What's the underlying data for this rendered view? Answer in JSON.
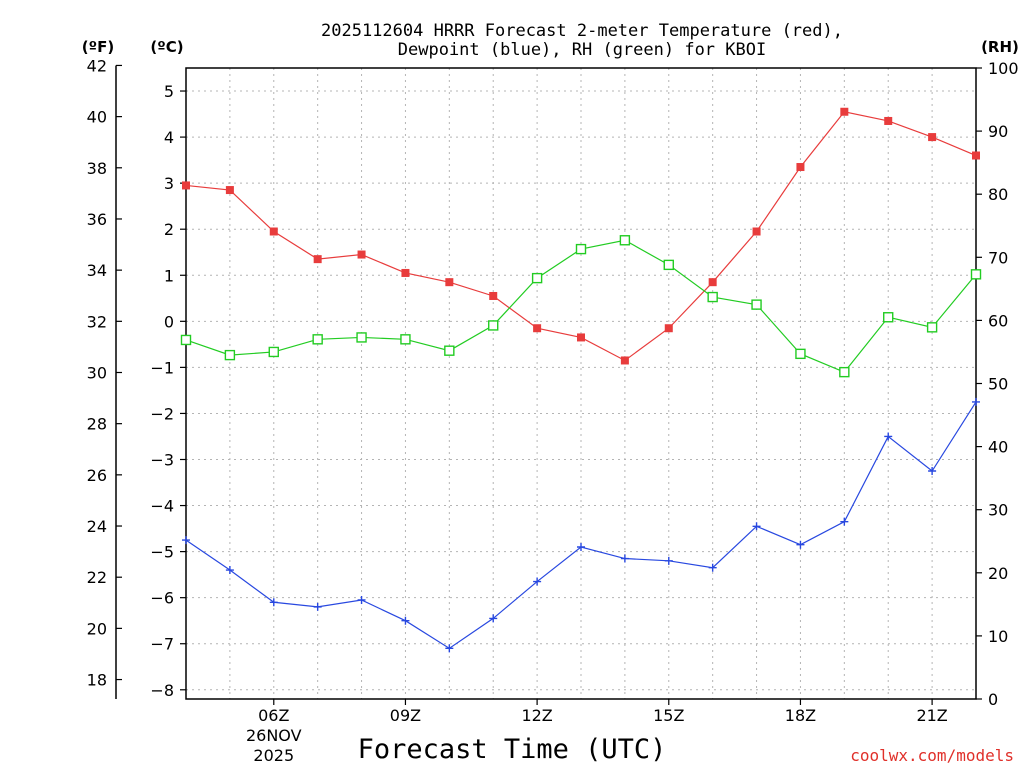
{
  "chart_data": {
    "type": "line",
    "title_lines": [
      "2025112604 HRRR Forecast 2-meter Temperature (red),",
      "Dewpoint (blue), RH (green) for KBOI"
    ],
    "axis_units": {
      "fahrenheit": "(ºF)",
      "celsius": "(ºC)",
      "rh": "(RH)"
    },
    "xlabel": "Forecast Time (UTC)",
    "x_hours": [
      4,
      5,
      6,
      7,
      8,
      9,
      10,
      11,
      12,
      13,
      14,
      15,
      16,
      17,
      18,
      19,
      20,
      21,
      22
    ],
    "xlim": [
      4,
      22
    ],
    "x_ticks": [
      {
        "hour": 6,
        "label": "06Z"
      },
      {
        "hour": 9,
        "label": "09Z"
      },
      {
        "hour": 12,
        "label": "12Z"
      },
      {
        "hour": 15,
        "label": "15Z"
      },
      {
        "hour": 18,
        "label": "18Z"
      },
      {
        "hour": 21,
        "label": "21Z"
      }
    ],
    "date_label_lines": [
      "26NOV",
      "2025"
    ],
    "date_label_hour": 6,
    "celsius_range": [
      -8.2,
      5.5
    ],
    "celsius_ticks": [
      -8,
      -7,
      -6,
      -5,
      -4,
      -3,
      -2,
      -1,
      0,
      1,
      2,
      3,
      4,
      5
    ],
    "fahrenheit_ticks": [
      18,
      20,
      22,
      24,
      26,
      28,
      30,
      32,
      34,
      36,
      38,
      40,
      42
    ],
    "rh_range": [
      0,
      100
    ],
    "rh_ticks": [
      0,
      10,
      20,
      30,
      40,
      50,
      60,
      70,
      80,
      90,
      100
    ],
    "series": [
      {
        "name": "2-meter Temperature",
        "axis": "celsius",
        "color": "#e83c3c",
        "marker": "filled-square",
        "values": [
          2.95,
          2.85,
          1.95,
          1.35,
          1.45,
          1.05,
          0.85,
          0.55,
          -0.15,
          -0.35,
          -0.85,
          -0.15,
          0.85,
          1.95,
          3.35,
          4.55,
          4.35,
          4.0,
          3.6
        ]
      },
      {
        "name": "Dewpoint",
        "axis": "celsius",
        "color": "#2848e0",
        "marker": "plus",
        "values": [
          -4.75,
          -5.4,
          -6.1,
          -6.2,
          -6.05,
          -6.5,
          -7.1,
          -6.45,
          -5.65,
          -4.9,
          -5.15,
          -5.2,
          -5.35,
          -4.45,
          -4.85,
          -4.35,
          -2.5,
          -3.25,
          -1.75
        ]
      },
      {
        "name": "Relative Humidity",
        "axis": "rh",
        "color": "#22cc22",
        "marker": "open-square",
        "values": [
          56.9,
          54.5,
          55.0,
          57.0,
          57.3,
          57.0,
          55.2,
          59.2,
          66.7,
          71.3,
          72.7,
          68.8,
          63.7,
          62.5,
          54.7,
          51.8,
          60.5,
          58.9,
          67.3
        ]
      }
    ],
    "grid": true
  },
  "footer": {
    "credit": "coolwx.com/models"
  }
}
